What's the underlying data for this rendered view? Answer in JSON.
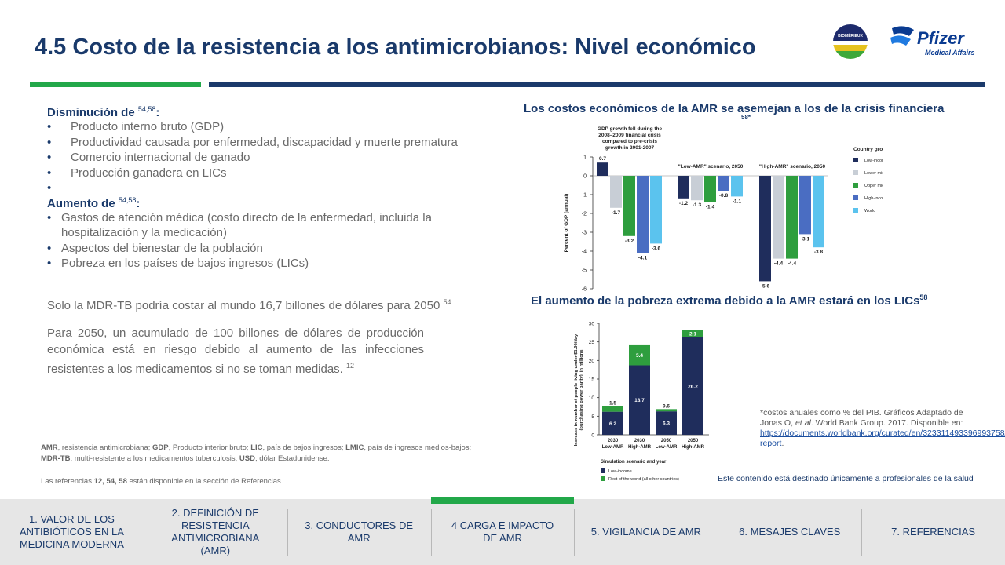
{
  "title": "4.5 Costo de la resistencia a los antimicrobianos: Nivel económico",
  "logos": {
    "biomerieux": "BIOMÉRIEUX",
    "pfizer": "Pfizer",
    "pfizer_sub": "Medical Affairs"
  },
  "colors": {
    "navy": "#1a3a6b",
    "green": "#22a849",
    "lightgray": "#c8ced6",
    "blue": "#4a6dc2",
    "lightblue": "#5bc3ee"
  },
  "left": {
    "h1": "Disminución de",
    "h1_sup": "54,58",
    "h1_colon": ":",
    "list1": [
      "Producto interno bruto (GDP)",
      "Productividad causada por enfermedad, discapacidad y muerte prematura",
      "Comercio internacional de ganado",
      "Producción ganadera en LICs",
      ""
    ],
    "h2": "Aumento de",
    "h2_sup": "54,58",
    "h2_colon": ":",
    "list2": [
      "Gastos de atención médica (costo directo de la enfermedad, incluida la hospitalización y la medicación)",
      "Aspectos del bienestar de la población",
      "Pobreza en los países de bajos ingresos (LICs)"
    ],
    "p1": "Solo la MDR-TB podría costar al mundo 16,7 billones de dólares para 2050",
    "p1_sup": "54",
    "p2": "Para 2050, un acumulado de 100 billones de dólares de producción económica está en riesgo debido al aumento de las infecciones resistentes a los medicamentos si no se toman medidas.",
    "p2_sup": "12"
  },
  "abbr": {
    "items": [
      {
        "k": "AMR",
        "v": ", resistencia antimicrobiana; "
      },
      {
        "k": "GDP",
        "v": ", Producto interior bruto; "
      },
      {
        "k": "LIC",
        "v": ", país de bajos ingresos; "
      },
      {
        "k": "LMIC",
        "v": ", país de ingresos medios-bajos; "
      },
      {
        "k": "MDR-TB",
        "v": ", multi-resistente a los medicamentos tuberculosis; "
      },
      {
        "k": "USD",
        "v": ", dólar Estadunidense."
      }
    ]
  },
  "refs": {
    "pre": "Las referencias ",
    "nums": "12, 54, 58",
    "post": " están disponible en la sección de Referencias"
  },
  "chart1": {
    "heading": "Los costos económicos de la AMR se asemejan a los de la crisis financiera",
    "heading_sup": "58*"
  },
  "chart2": {
    "heading": "El aumento de la pobreza extrema debido a la AMR estará en los LICs",
    "heading_sup": "58"
  },
  "chart_data": [
    {
      "type": "bar",
      "ylabel": "Percent of GDP (annual)",
      "ylim": [
        -6,
        1
      ],
      "group_labels": [
        "GDP growth fell during the 2008–2009 financial crisis compared to pre-crisis growth in 2001-2007",
        "\"Low-AMR\" scenario, 2050",
        "\"High-AMR\" scenario, 2050"
      ],
      "legend_title": "Country group:",
      "series": [
        {
          "name": "Low-income",
          "color": "#1f2d5c",
          "values": [
            0.7,
            -1.2,
            -5.6
          ]
        },
        {
          "name": "Lower middle-income",
          "color": "#c8ced6",
          "values": [
            -1.7,
            -1.3,
            -4.4
          ]
        },
        {
          "name": "Upper middle-income",
          "color": "#2e9e3e",
          "values": [
            -3.2,
            -1.4,
            -4.4
          ]
        },
        {
          "name": "High-income",
          "color": "#4a6dc2",
          "values": [
            -4.1,
            -0.8,
            -3.1
          ]
        },
        {
          "name": "World",
          "color": "#5bc3ee",
          "values": [
            -3.6,
            -1.1,
            -3.8
          ]
        }
      ],
      "yticks": [
        "1",
        "0",
        "-1",
        "-2",
        "-3",
        "-4",
        "-5",
        "-6"
      ]
    },
    {
      "type": "bar",
      "stacked": true,
      "ylabel": "Increase in number of people living under $1.90/day (purchasing power parity), in millions",
      "xlabel": "Simulation scenario and year",
      "ylim": [
        0,
        30
      ],
      "yticks": [
        "0",
        "5",
        "10",
        "15",
        "20",
        "25",
        "30"
      ],
      "categories": [
        [
          "2030",
          "Low-AMR"
        ],
        [
          "2030",
          "High-AMR"
        ],
        [
          "2050",
          "Low-AMR"
        ],
        [
          "2050",
          "High-AMR"
        ]
      ],
      "series": [
        {
          "name": "Low-income",
          "color": "#1f2d5c",
          "values": [
            6.2,
            18.7,
            6.3,
            26.2
          ]
        },
        {
          "name": "Rest of the world (all other countries)",
          "color": "#2e9e3e",
          "values": [
            1.5,
            5.4,
            0.6,
            2.1
          ]
        }
      ]
    }
  ],
  "note": {
    "text": "*costos anuales como % del PIB. Gráficos Adaptado de Jonas O, ",
    "italic": "et al",
    "text2": ". World Bank Group. 2017. Disponible en:",
    "link": "https://documents.worldbank.org/curated/en/323311493396993758/final-report",
    "link_end": "."
  },
  "disclaimer": "Este contenido está destinado únicamente a profesionales de la salud",
  "nav": [
    "1. VALOR DE LOS ANTIBIÓTICOS EN LA MEDICINA MODERNA",
    "2. DEFINICIÓN DE RESISTENCIA ANTIMICROBIANA (AMR)",
    "3. CONDUCTORES DE AMR",
    "4 CARGA E IMPACTO DE AMR",
    "5. VIGILANCIA DE AMR",
    "6. MESAJES CLAVES",
    "7. REFERENCIAS"
  ],
  "nav_active": 3
}
